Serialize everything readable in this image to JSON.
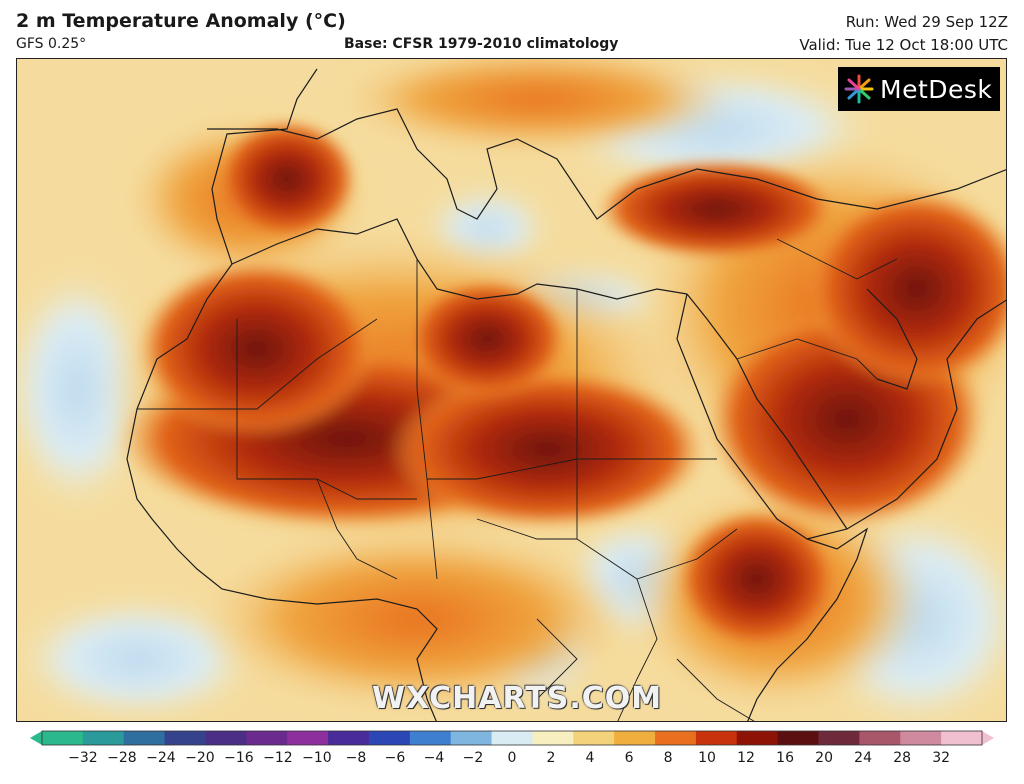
{
  "header": {
    "title": "2 m Temperature Anomaly (°C)",
    "model": "GFS 0.25°",
    "base": "Base: CFSR 1979-2010 climatology",
    "run": "Run: Wed 29 Sep 12Z",
    "valid": "Valid: Tue 12 Oct 18:00 UTC"
  },
  "logo": {
    "text": "MetDesk",
    "icon": "metdesk-starburst-icon"
  },
  "watermark": "WXCHARTS.COM",
  "colorbar": {
    "labels": [
      "−32",
      "−28",
      "−24",
      "−20",
      "−16",
      "−12",
      "−10",
      "−8",
      "−6",
      "−4",
      "−2",
      "0",
      "2",
      "4",
      "6",
      "8",
      "10",
      "12",
      "16",
      "20",
      "24",
      "28",
      "32"
    ],
    "colors": [
      "#2bb88c",
      "#2a9a9a",
      "#2e6fa0",
      "#35428c",
      "#4b2e86",
      "#6a2a8e",
      "#8e2f9e",
      "#4a2b9a",
      "#2a47b5",
      "#3e7fcf",
      "#7fb6e0",
      "#d9ecf4",
      "#f7efc0",
      "#f4d27a",
      "#f0ae3e",
      "#e8701e",
      "#c8320c",
      "#8c1306",
      "#5c0f10",
      "#6e2a3a",
      "#a8566a",
      "#d08aa0",
      "#f0c0d0"
    ]
  },
  "map": {
    "region": "North Africa and Middle East",
    "colors": {
      "sea": "#f4d28c",
      "cool": "#d8ebf5",
      "warm": "#f0a640",
      "hot": "#c8320c",
      "extreme": "#6e150a"
    }
  }
}
